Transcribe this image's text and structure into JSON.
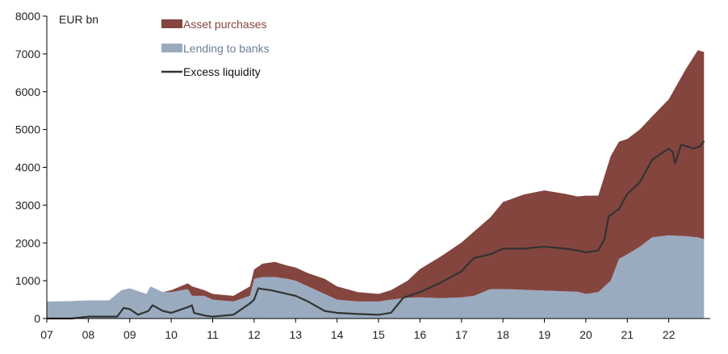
{
  "chart_data": {
    "type": "area",
    "ylabel": "EUR bn",
    "ylim": [
      0,
      8000
    ],
    "yticks": [
      0,
      1000,
      2000,
      3000,
      4000,
      5000,
      6000,
      7000,
      8000
    ],
    "xlim": [
      2007.0,
      2023.0
    ],
    "xticks": [
      {
        "value": 2007,
        "label": "07"
      },
      {
        "value": 2008,
        "label": "08"
      },
      {
        "value": 2009,
        "label": "09"
      },
      {
        "value": 2010,
        "label": "10"
      },
      {
        "value": 2011,
        "label": "11"
      },
      {
        "value": 2012,
        "label": "12"
      },
      {
        "value": 2013,
        "label": "13"
      },
      {
        "value": 2014,
        "label": "14"
      },
      {
        "value": 2015,
        "label": "15"
      },
      {
        "value": 2016,
        "label": "16"
      },
      {
        "value": 2017,
        "label": "17"
      },
      {
        "value": 2018,
        "label": "18"
      },
      {
        "value": 2019,
        "label": "19"
      },
      {
        "value": 2020,
        "label": "20"
      },
      {
        "value": 2021,
        "label": "21"
      },
      {
        "value": 2022,
        "label": "22"
      }
    ],
    "grid": false,
    "legend_position": "top-left",
    "x": [
      2007.0,
      2007.5,
      2008.0,
      2008.5,
      2008.8,
      2009.0,
      2009.4,
      2009.5,
      2009.8,
      2010.0,
      2010.4,
      2010.5,
      2010.8,
      2011.0,
      2011.5,
      2011.9,
      2012.0,
      2012.2,
      2012.5,
      2012.8,
      2013.0,
      2013.3,
      2013.7,
      2014.0,
      2014.5,
      2015.0,
      2015.3,
      2015.7,
      2016.0,
      2016.5,
      2017.0,
      2017.3,
      2017.7,
      2018.0,
      2018.5,
      2019.0,
      2019.5,
      2019.8,
      2020.0,
      2020.3,
      2020.6,
      2020.8,
      2021.0,
      2021.3,
      2021.6,
      2022.0,
      2022.4,
      2022.7,
      2022.85
    ],
    "series": [
      {
        "name": "Lending to banks",
        "color": "#9aabbf",
        "values": [
          450,
          460,
          480,
          480,
          750,
          800,
          650,
          850,
          700,
          700,
          780,
          600,
          600,
          500,
          450,
          600,
          1050,
          1100,
          1100,
          1050,
          1000,
          850,
          650,
          500,
          450,
          450,
          500,
          550,
          560,
          540,
          560,
          600,
          780,
          780,
          760,
          740,
          720,
          710,
          650,
          700,
          1000,
          1580,
          1700,
          1900,
          2150,
          2200,
          2180,
          2150,
          2100
        ]
      },
      {
        "name": "Asset purchases",
        "color": "#84453f",
        "values": [
          0,
          0,
          0,
          0,
          0,
          0,
          0,
          0,
          0,
          50,
          150,
          250,
          150,
          150,
          150,
          250,
          250,
          350,
          400,
          350,
          350,
          350,
          400,
          350,
          250,
          200,
          250,
          450,
          750,
          1100,
          1450,
          1700,
          1900,
          2300,
          2520,
          2650,
          2580,
          2520,
          2600,
          2550,
          3300,
          3100,
          3050,
          3100,
          3200,
          3600,
          4400,
          4950,
          4950
        ]
      }
    ],
    "line": {
      "name": "Excess liquidity",
      "color": "#333333",
      "x": [
        2007.0,
        2007.6,
        2008.0,
        2008.7,
        2008.85,
        2009.0,
        2009.2,
        2009.45,
        2009.55,
        2009.8,
        2010.0,
        2010.4,
        2010.5,
        2010.55,
        2010.8,
        2011.0,
        2011.5,
        2011.9,
        2012.0,
        2012.1,
        2012.2,
        2012.4,
        2012.6,
        2012.8,
        2013.0,
        2013.3,
        2013.7,
        2014.0,
        2014.5,
        2015.0,
        2015.3,
        2015.6,
        2016.0,
        2016.5,
        2017.0,
        2017.3,
        2017.7,
        2018.0,
        2018.5,
        2019.0,
        2019.5,
        2019.8,
        2020.0,
        2020.3,
        2020.45,
        2020.55,
        2020.8,
        2021.0,
        2021.3,
        2021.6,
        2022.0,
        2022.1,
        2022.15,
        2022.3,
        2022.6,
        2022.75,
        2022.85
      ],
      "values": [
        0,
        0,
        50,
        50,
        280,
        250,
        100,
        200,
        350,
        200,
        150,
        300,
        350,
        150,
        80,
        50,
        100,
        400,
        500,
        800,
        780,
        750,
        700,
        650,
        600,
        450,
        200,
        150,
        120,
        100,
        150,
        550,
        700,
        950,
        1250,
        1600,
        1700,
        1850,
        1850,
        1900,
        1850,
        1800,
        1750,
        1800,
        2100,
        2700,
        2900,
        3300,
        3600,
        4200,
        4500,
        4400,
        4100,
        4600,
        4500,
        4550,
        4700
      ]
    }
  }
}
